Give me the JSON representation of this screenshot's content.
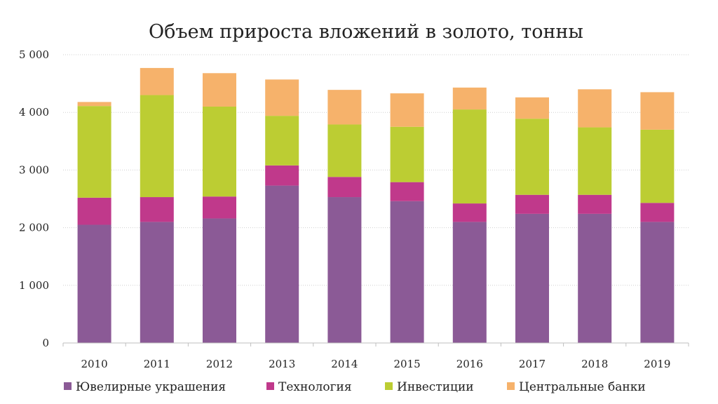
{
  "chart_data": {
    "type": "bar",
    "stacked": true,
    "title": "Объем прироста вложений в золото, тонны",
    "xlabel": "",
    "ylabel": "",
    "categories": [
      "2010",
      "2011",
      "2012",
      "2013",
      "2014",
      "2015",
      "2016",
      "2017",
      "2018",
      "2019"
    ],
    "series": [
      {
        "name": "Ювелирные украшения",
        "color": "#8b5a96",
        "values": [
          2050,
          2100,
          2160,
          2730,
          2530,
          2460,
          2100,
          2240,
          2240,
          2100
        ]
      },
      {
        "name": "Технология",
        "color": "#c0398b",
        "values": [
          470,
          430,
          380,
          350,
          350,
          330,
          320,
          330,
          330,
          330
        ]
      },
      {
        "name": "Инвестиции",
        "color": "#bccd33",
        "values": [
          1590,
          1770,
          1560,
          860,
          910,
          960,
          1630,
          1320,
          1170,
          1270
        ]
      },
      {
        "name": "Центральные банки",
        "color": "#f6b26b",
        "values": [
          70,
          470,
          580,
          630,
          600,
          580,
          380,
          370,
          660,
          650
        ]
      }
    ],
    "ylim": [
      0,
      5000
    ],
    "yticks": [
      0,
      1000,
      2000,
      3000,
      4000,
      5000
    ],
    "ytick_labels": [
      "0",
      "1 000",
      "2 000",
      "3 000",
      "4 000",
      "5 000"
    ],
    "grid": true,
    "legend_position": "bottom"
  }
}
